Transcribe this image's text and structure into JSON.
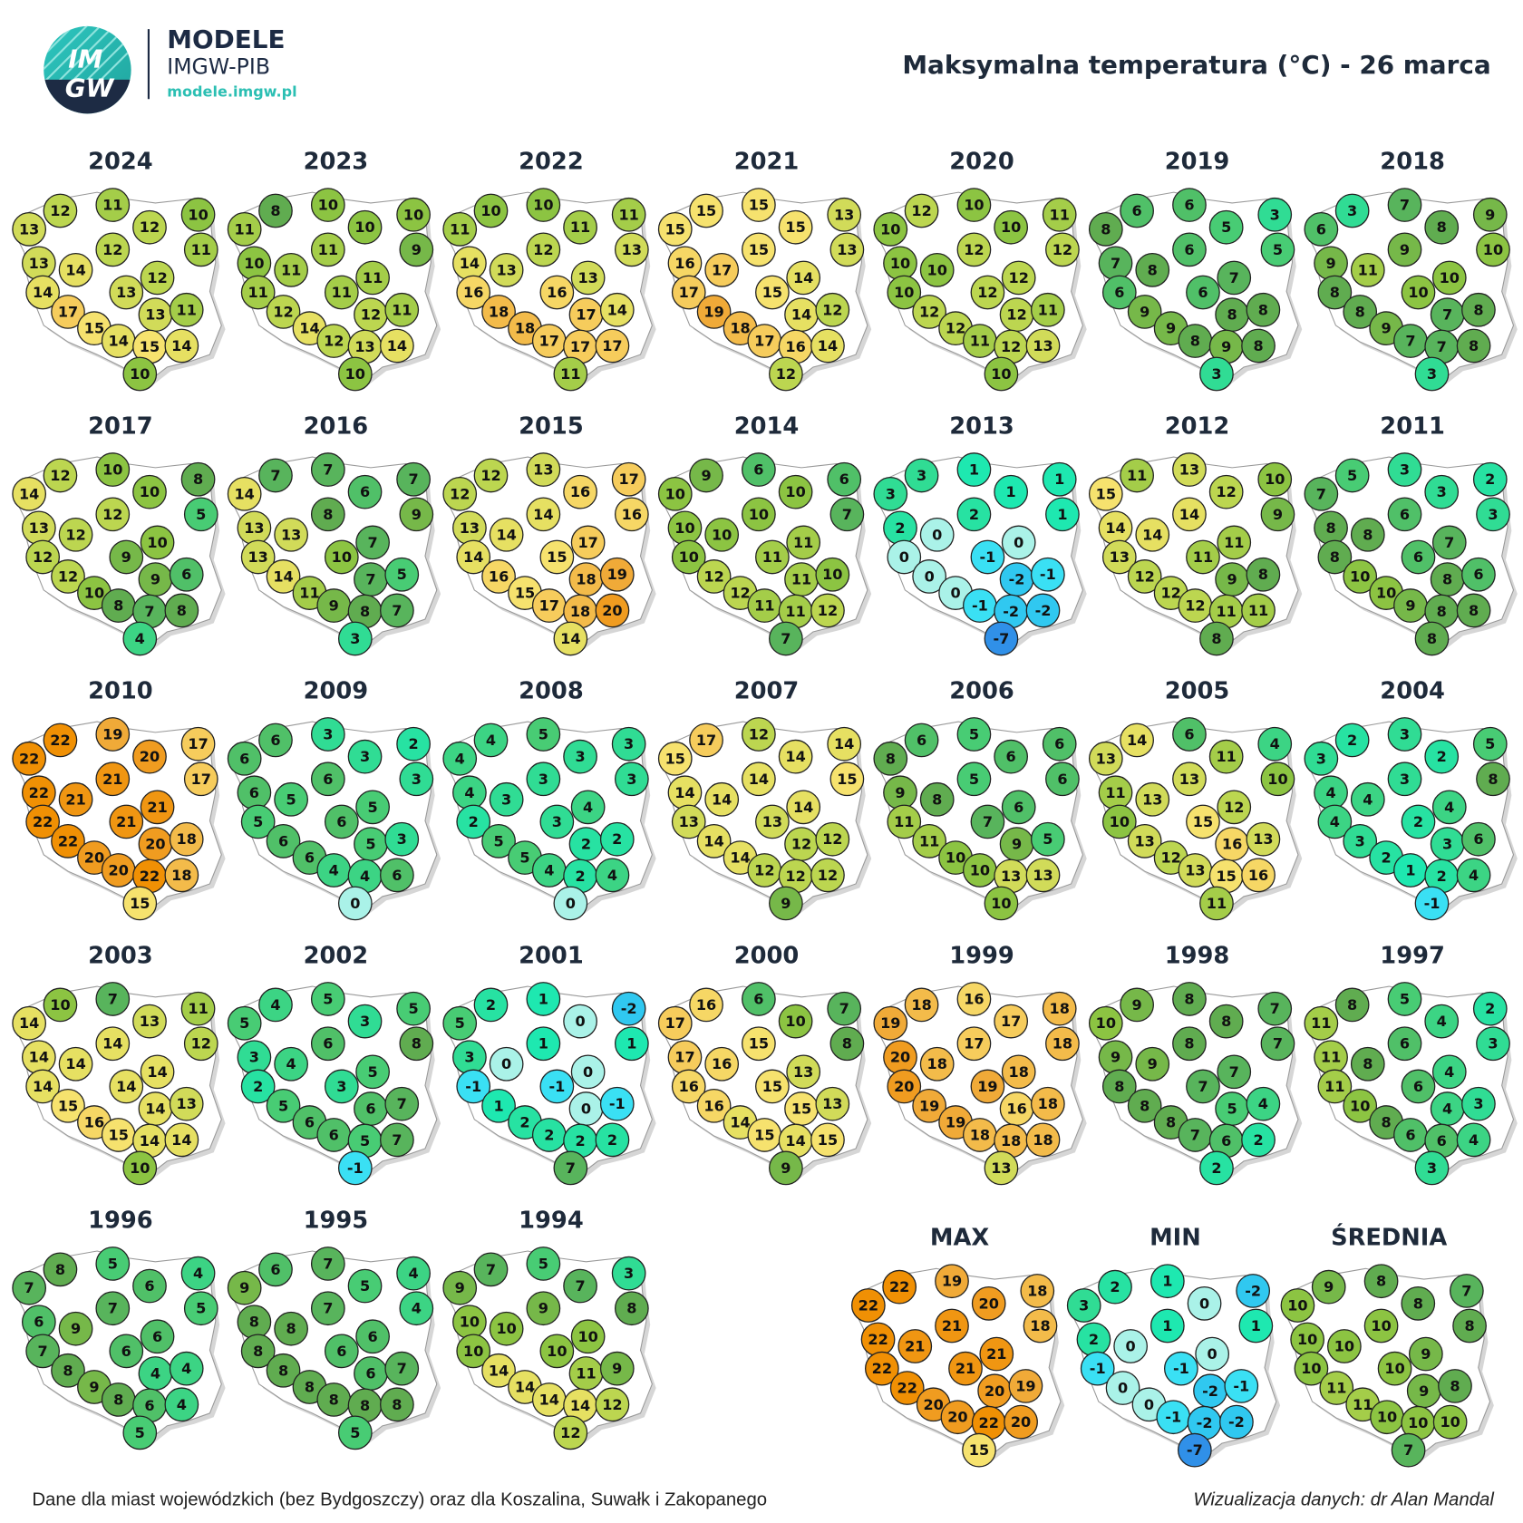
{
  "header": {
    "logo_lines": [
      "IM",
      "GW"
    ],
    "brand": "MODELE",
    "org": "IMGW-PIB",
    "url": "modele.imgw.pl",
    "title": "Maksymalna temperatura (°C) - 26 marca"
  },
  "maps": [
    {
      "label": "2024",
      "values": [
        12,
        11,
        10,
        13,
        12,
        11,
        12,
        13,
        14,
        12,
        14,
        13,
        17,
        13,
        11,
        15,
        14,
        15,
        14,
        10
      ]
    },
    {
      "label": "2023",
      "values": [
        8,
        10,
        10,
        11,
        10,
        9,
        11,
        10,
        11,
        11,
        11,
        11,
        12,
        12,
        11,
        14,
        12,
        13,
        14,
        10
      ]
    },
    {
      "label": "2022",
      "values": [
        10,
        10,
        11,
        11,
        11,
        13,
        12,
        14,
        13,
        13,
        16,
        16,
        18,
        17,
        14,
        18,
        17,
        17,
        17,
        11
      ]
    },
    {
      "label": "2021",
      "values": [
        15,
        15,
        13,
        15,
        15,
        13,
        15,
        16,
        17,
        14,
        17,
        15,
        19,
        14,
        12,
        18,
        17,
        16,
        14,
        12
      ]
    },
    {
      "label": "2020",
      "values": [
        12,
        10,
        11,
        10,
        10,
        12,
        12,
        10,
        10,
        12,
        10,
        12,
        12,
        12,
        11,
        12,
        11,
        12,
        13,
        10
      ]
    },
    {
      "label": "2019",
      "values": [
        6,
        6,
        3,
        8,
        5,
        5,
        6,
        7,
        8,
        7,
        6,
        6,
        9,
        8,
        8,
        9,
        8,
        9,
        8,
        3
      ]
    },
    {
      "label": "2018",
      "values": [
        3,
        7,
        9,
        6,
        8,
        10,
        9,
        9,
        11,
        10,
        8,
        10,
        8,
        7,
        8,
        9,
        7,
        7,
        8,
        3
      ]
    },
    {
      "label": "2017",
      "values": [
        12,
        10,
        8,
        14,
        10,
        5,
        12,
        13,
        12,
        10,
        12,
        9,
        12,
        9,
        6,
        10,
        8,
        7,
        8,
        4
      ]
    },
    {
      "label": "2016",
      "values": [
        7,
        7,
        7,
        14,
        6,
        9,
        8,
        13,
        13,
        7,
        13,
        10,
        14,
        7,
        5,
        11,
        9,
        8,
        7,
        3
      ]
    },
    {
      "label": "2015",
      "values": [
        12,
        13,
        17,
        12,
        16,
        16,
        14,
        13,
        14,
        17,
        14,
        15,
        16,
        18,
        19,
        15,
        17,
        18,
        20,
        14
      ]
    },
    {
      "label": "2014",
      "values": [
        9,
        6,
        6,
        10,
        10,
        7,
        10,
        10,
        10,
        11,
        10,
        11,
        12,
        11,
        10,
        12,
        11,
        11,
        12,
        7
      ]
    },
    {
      "label": "2013",
      "values": [
        3,
        1,
        1,
        3,
        1,
        1,
        2,
        2,
        0,
        0,
        0,
        -1,
        0,
        -2,
        -1,
        0,
        -1,
        -2,
        -2,
        -7
      ]
    },
    {
      "label": "2012",
      "values": [
        11,
        13,
        10,
        15,
        12,
        9,
        14,
        14,
        14,
        11,
        13,
        11,
        12,
        9,
        8,
        12,
        12,
        11,
        11,
        8
      ]
    },
    {
      "label": "2011",
      "values": [
        5,
        3,
        2,
        7,
        3,
        3,
        6,
        8,
        8,
        7,
        8,
        6,
        10,
        8,
        6,
        10,
        9,
        8,
        8,
        8
      ]
    },
    {
      "label": "2010",
      "values": [
        22,
        19,
        17,
        22,
        20,
        17,
        21,
        22,
        21,
        21,
        22,
        21,
        22,
        20,
        18,
        20,
        20,
        22,
        18,
        15
      ]
    },
    {
      "label": "2009",
      "values": [
        6,
        3,
        2,
        6,
        3,
        3,
        6,
        6,
        5,
        5,
        5,
        6,
        6,
        5,
        3,
        6,
        4,
        4,
        6,
        0
      ]
    },
    {
      "label": "2008",
      "values": [
        4,
        5,
        3,
        4,
        3,
        3,
        3,
        4,
        3,
        4,
        2,
        3,
        5,
        2,
        2,
        5,
        4,
        2,
        4,
        0
      ]
    },
    {
      "label": "2007",
      "values": [
        17,
        12,
        14,
        15,
        14,
        15,
        14,
        14,
        14,
        14,
        13,
        13,
        14,
        12,
        12,
        14,
        12,
        12,
        12,
        9
      ]
    },
    {
      "label": "2006",
      "values": [
        6,
        5,
        6,
        8,
        6,
        6,
        5,
        9,
        8,
        6,
        11,
        7,
        11,
        9,
        5,
        10,
        10,
        13,
        13,
        10
      ]
    },
    {
      "label": "2005",
      "values": [
        14,
        6,
        4,
        13,
        11,
        10,
        13,
        11,
        13,
        12,
        10,
        15,
        13,
        16,
        13,
        12,
        13,
        15,
        16,
        11
      ]
    },
    {
      "label": "2004",
      "values": [
        2,
        3,
        5,
        3,
        2,
        8,
        3,
        4,
        4,
        4,
        4,
        2,
        3,
        3,
        6,
        2,
        1,
        2,
        4,
        -1
      ]
    },
    {
      "label": "2003",
      "values": [
        10,
        7,
        11,
        14,
        13,
        12,
        14,
        14,
        14,
        14,
        14,
        14,
        15,
        14,
        13,
        16,
        15,
        14,
        14,
        10
      ]
    },
    {
      "label": "2002",
      "values": [
        4,
        5,
        5,
        5,
        3,
        8,
        6,
        3,
        4,
        5,
        2,
        3,
        5,
        6,
        7,
        6,
        6,
        5,
        7,
        -1
      ]
    },
    {
      "label": "2001",
      "values": [
        2,
        1,
        -2,
        5,
        0,
        1,
        1,
        3,
        0,
        0,
        -1,
        -1,
        1,
        0,
        -1,
        2,
        2,
        2,
        2,
        7
      ]
    },
    {
      "label": "2000",
      "values": [
        16,
        6,
        7,
        17,
        10,
        8,
        15,
        17,
        16,
        13,
        16,
        15,
        16,
        15,
        13,
        14,
        15,
        14,
        15,
        9
      ]
    },
    {
      "label": "1999",
      "values": [
        18,
        16,
        18,
        19,
        17,
        18,
        17,
        20,
        18,
        18,
        20,
        19,
        19,
        16,
        18,
        19,
        18,
        18,
        18,
        13
      ]
    },
    {
      "label": "1998",
      "values": [
        9,
        8,
        7,
        10,
        8,
        7,
        8,
        9,
        9,
        7,
        8,
        7,
        8,
        5,
        4,
        8,
        7,
        6,
        2,
        2
      ]
    },
    {
      "label": "1997",
      "values": [
        8,
        5,
        2,
        11,
        4,
        3,
        6,
        11,
        8,
        4,
        11,
        6,
        10,
        4,
        3,
        8,
        6,
        6,
        4,
        3
      ]
    },
    {
      "label": "1996",
      "values": [
        8,
        5,
        4,
        7,
        6,
        5,
        7,
        6,
        9,
        6,
        7,
        6,
        8,
        4,
        4,
        9,
        8,
        6,
        4,
        5
      ]
    },
    {
      "label": "1995",
      "values": [
        6,
        7,
        4,
        9,
        5,
        4,
        7,
        8,
        8,
        6,
        8,
        6,
        8,
        6,
        7,
        8,
        8,
        8,
        8,
        5
      ]
    },
    {
      "label": "1994",
      "values": [
        7,
        5,
        3,
        9,
        7,
        8,
        9,
        10,
        10,
        10,
        10,
        10,
        14,
        11,
        9,
        14,
        14,
        14,
        12,
        12
      ]
    },
    {
      "label": "MAX",
      "values": [
        22,
        19,
        18,
        22,
        20,
        18,
        21,
        22,
        21,
        21,
        22,
        21,
        22,
        20,
        19,
        20,
        20,
        22,
        20,
        15
      ]
    },
    {
      "label": "MIN",
      "values": [
        2,
        1,
        -2,
        3,
        0,
        1,
        1,
        2,
        0,
        0,
        -1,
        -1,
        0,
        -2,
        -1,
        0,
        -1,
        -2,
        -2,
        -7
      ]
    },
    {
      "label": "ŚREDNIA",
      "values": [
        9,
        8,
        7,
        10,
        8,
        8,
        10,
        10,
        10,
        9,
        10,
        10,
        11,
        9,
        8,
        11,
        10,
        10,
        10,
        7
      ]
    }
  ],
  "footer": {
    "note": "Dane dla miast wojewódzkich (bez Bydgoszczy) oraz dla Koszalina, Suwałk i Zakopanego",
    "credit": "Wizualizacja danych: dr Alan Mandal"
  }
}
